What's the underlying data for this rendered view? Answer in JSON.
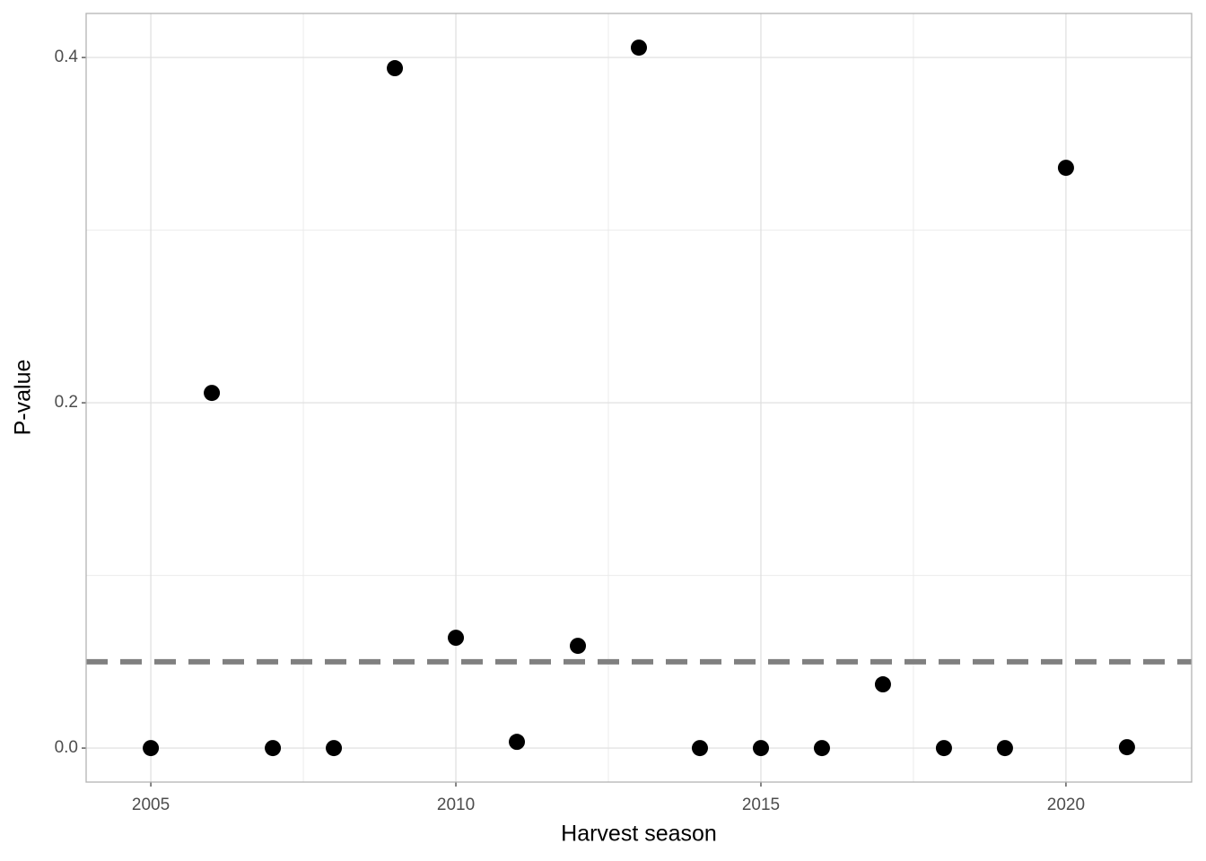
{
  "chart_data": {
    "type": "scatter",
    "x_label": "Harvest season",
    "y_label": "P-value",
    "x": [
      2005,
      2006,
      2007,
      2008,
      2009,
      2010,
      2011,
      2012,
      2013,
      2014,
      2015,
      2016,
      2017,
      2018,
      2019,
      2020,
      2021
    ],
    "y": [
      0,
      0.2057,
      0,
      0,
      0.3938,
      0.0639,
      0.0036,
      0.0592,
      0.4057,
      0,
      0,
      0,
      0.0369,
      0,
      0,
      0.3361,
      0.0005
    ],
    "color": "#000000",
    "xlim": [
      2003.94,
      2022.06
    ],
    "ylim": [
      -0.0197,
      0.4255
    ],
    "xticks": [
      2005,
      2010,
      2015,
      2020
    ],
    "yticks": [
      {
        "value": 0,
        "label": "0.0"
      },
      0.2,
      0.4
    ],
    "minor_xticks": [
      2007.5,
      2012.5,
      2017.5
    ],
    "minor_yticks": [
      0.1,
      0.3
    ],
    "hline": 0.05,
    "hline_color": "#808080",
    "grid": true
  }
}
